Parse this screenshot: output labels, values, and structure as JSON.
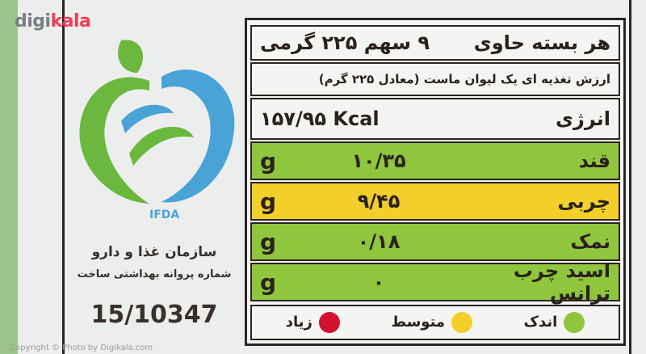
{
  "watermark": {
    "brand_a": "digi",
    "brand_b": "kala",
    "copyright": "Copyright © Photo by Digikala.com"
  },
  "logo": {
    "text": "IFDA"
  },
  "org": {
    "name": "سازمان غذا و دارو",
    "license_label": "شماره پروانه بهداشتی ساخت",
    "license_number": "15/10347"
  },
  "label": {
    "header_left": "هر بسته حاوی",
    "header_right": "۹ سهم ۲۲۵ گرمی",
    "subtitle": "ارزش تغذیه ای یک لیوان ماست (معادل ۲۲۵ گرم)",
    "energy": {
      "name": "انرژی",
      "value": "۱۵۷/۹۵ Kcal"
    },
    "nutrients": [
      {
        "name": "قند",
        "value": "۱۰/۳۵",
        "unit": "g",
        "level": "green"
      },
      {
        "name": "چربی",
        "value": "۹/۴۵",
        "unit": "g",
        "level": "yellow"
      },
      {
        "name": "نمک",
        "value": "۰/۱۸",
        "unit": "g",
        "level": "green"
      },
      {
        "name": "اسید چرب ترانس",
        "value": "۰",
        "unit": "g",
        "level": "green"
      }
    ],
    "legend": [
      {
        "label": "اندک",
        "color": "#8fc63d"
      },
      {
        "label": "متوسط",
        "color": "#f2cf2a"
      },
      {
        "label": "زیاد",
        "color": "#d4112e"
      }
    ]
  },
  "colors": {
    "green": "#8fc63d",
    "yellow": "#f2cf2a",
    "red": "#d4112e",
    "logo_blue": "#4aa3d6",
    "logo_green": "#6cb83f"
  }
}
